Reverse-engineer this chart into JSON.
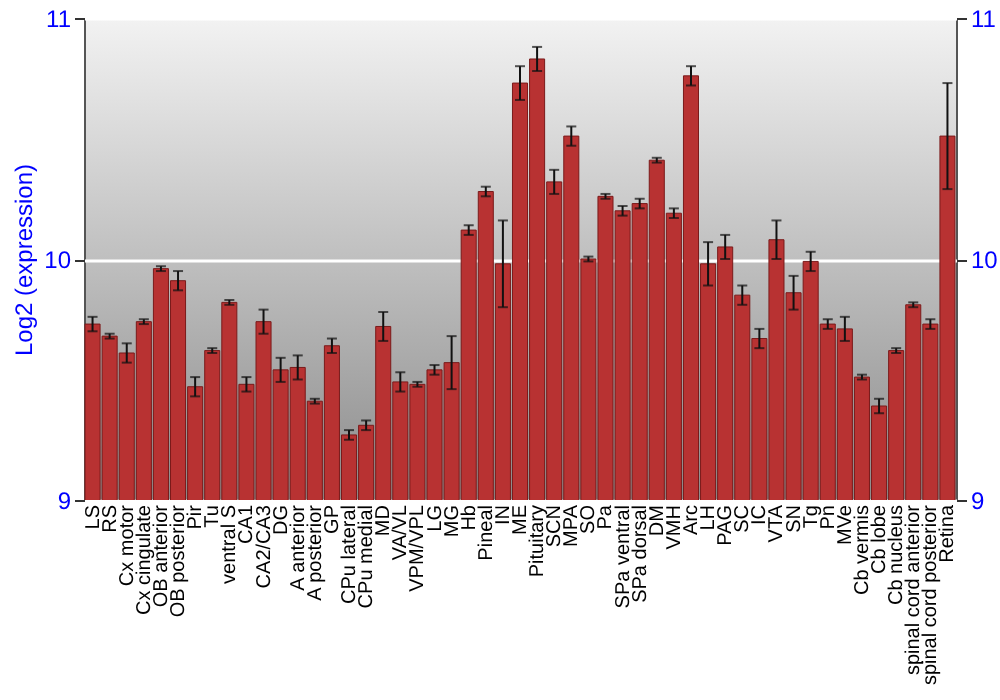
{
  "chart_data": {
    "type": "bar",
    "ylabel": "Log2 (expression)",
    "categories": [
      "LS",
      "RS",
      "Cx motor",
      "Cx cingulate",
      "OB anterior",
      "OB posterior",
      "Pir",
      "Tu",
      "ventral S",
      "CA1",
      "CA2/CA3",
      "DG",
      "A anterior",
      "A posterior",
      "GP",
      "CPu lateral",
      "CPu medial",
      "MD",
      "VA/VL",
      "VPM/VPL",
      "LG",
      "MG",
      "Hb",
      "Pineal",
      "IN",
      "ME",
      "Pituitary",
      "SCN",
      "MPA",
      "SO",
      "Pa",
      "SPa ventral",
      "SPa dorsal",
      "DM",
      "VMH",
      "Arc",
      "LH",
      "PAG",
      "SC",
      "IC",
      "VTA",
      "SN",
      "Tg",
      "Pn",
      "MVe",
      "Cb vermis",
      "Cb lobe",
      "Cb nucleus",
      "spinal cord anterior",
      "spinal cord posterior",
      "Retina"
    ],
    "values": [
      9.73,
      9.68,
      9.61,
      9.74,
      9.96,
      9.91,
      9.47,
      9.62,
      9.82,
      9.48,
      9.74,
      9.54,
      9.55,
      9.41,
      9.64,
      9.27,
      9.31,
      9.72,
      9.49,
      9.48,
      9.54,
      9.57,
      10.12,
      10.28,
      9.98,
      10.73,
      10.83,
      10.32,
      10.51,
      10.0,
      10.26,
      10.2,
      10.23,
      10.41,
      10.19,
      10.76,
      9.98,
      10.05,
      9.85,
      9.67,
      10.08,
      9.86,
      9.99,
      9.73,
      9.71,
      9.51,
      9.39,
      9.62,
      9.81,
      9.73,
      10.51
    ],
    "errors": [
      0.03,
      0.01,
      0.04,
      0.01,
      0.01,
      0.04,
      0.04,
      0.01,
      0.01,
      0.03,
      0.05,
      0.05,
      0.05,
      0.01,
      0.03,
      0.02,
      0.02,
      0.06,
      0.04,
      0.01,
      0.02,
      0.11,
      0.02,
      0.02,
      0.18,
      0.07,
      0.05,
      0.05,
      0.04,
      0.01,
      0.01,
      0.02,
      0.02,
      0.01,
      0.02,
      0.04,
      0.09,
      0.05,
      0.04,
      0.04,
      0.08,
      0.07,
      0.04,
      0.02,
      0.05,
      0.01,
      0.03,
      0.01,
      0.01,
      0.02,
      0.22
    ],
    "color": "#b83232",
    "ylim": [
      9,
      11
    ],
    "yticks": [
      9,
      10,
      11
    ],
    "y2lim": [
      9,
      11
    ],
    "y2ticks": [
      9,
      10,
      11
    ],
    "grid": true
  }
}
